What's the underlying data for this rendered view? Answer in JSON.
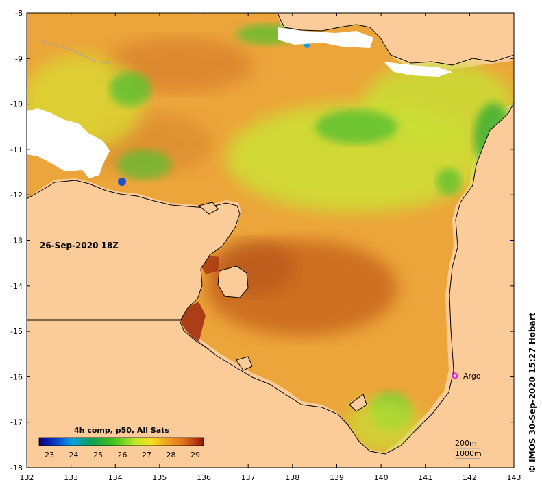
{
  "date_label": "26-Sep-2020 18Z",
  "credit": "© IMOS 30-Sep-2020 15:27 Hobart",
  "colorbar": {
    "title": "4h comp, p50, All Sats",
    "ticks": [
      "23",
      "24",
      "25",
      "26",
      "27",
      "28",
      "29"
    ],
    "colors": [
      "#06007a",
      "#0a3cc8",
      "#0aa0e0",
      "#10a050",
      "#40c020",
      "#b8e828",
      "#f8e020",
      "#f0a020",
      "#e07018",
      "#b83c10",
      "#901808"
    ]
  },
  "x_axis_labels": [
    "132",
    "133",
    "134",
    "135",
    "136",
    "137",
    "138",
    "139",
    "140",
    "141",
    "142",
    "143"
  ],
  "y_axis_labels": [
    "-8",
    "-9",
    "-10",
    "-11",
    "-12",
    "-13",
    "-14",
    "-15",
    "-16",
    "-17",
    "-18"
  ],
  "argo": {
    "label": "Argo",
    "color": "#e020e0"
  },
  "contours": {
    "shallow": "200m",
    "deep": "1000m"
  },
  "colors": {
    "land": "#fbcc99",
    "water_base": "#eca53a",
    "warm": "#c8661e",
    "cool": "#b8e03c",
    "green": "#58c030"
  }
}
